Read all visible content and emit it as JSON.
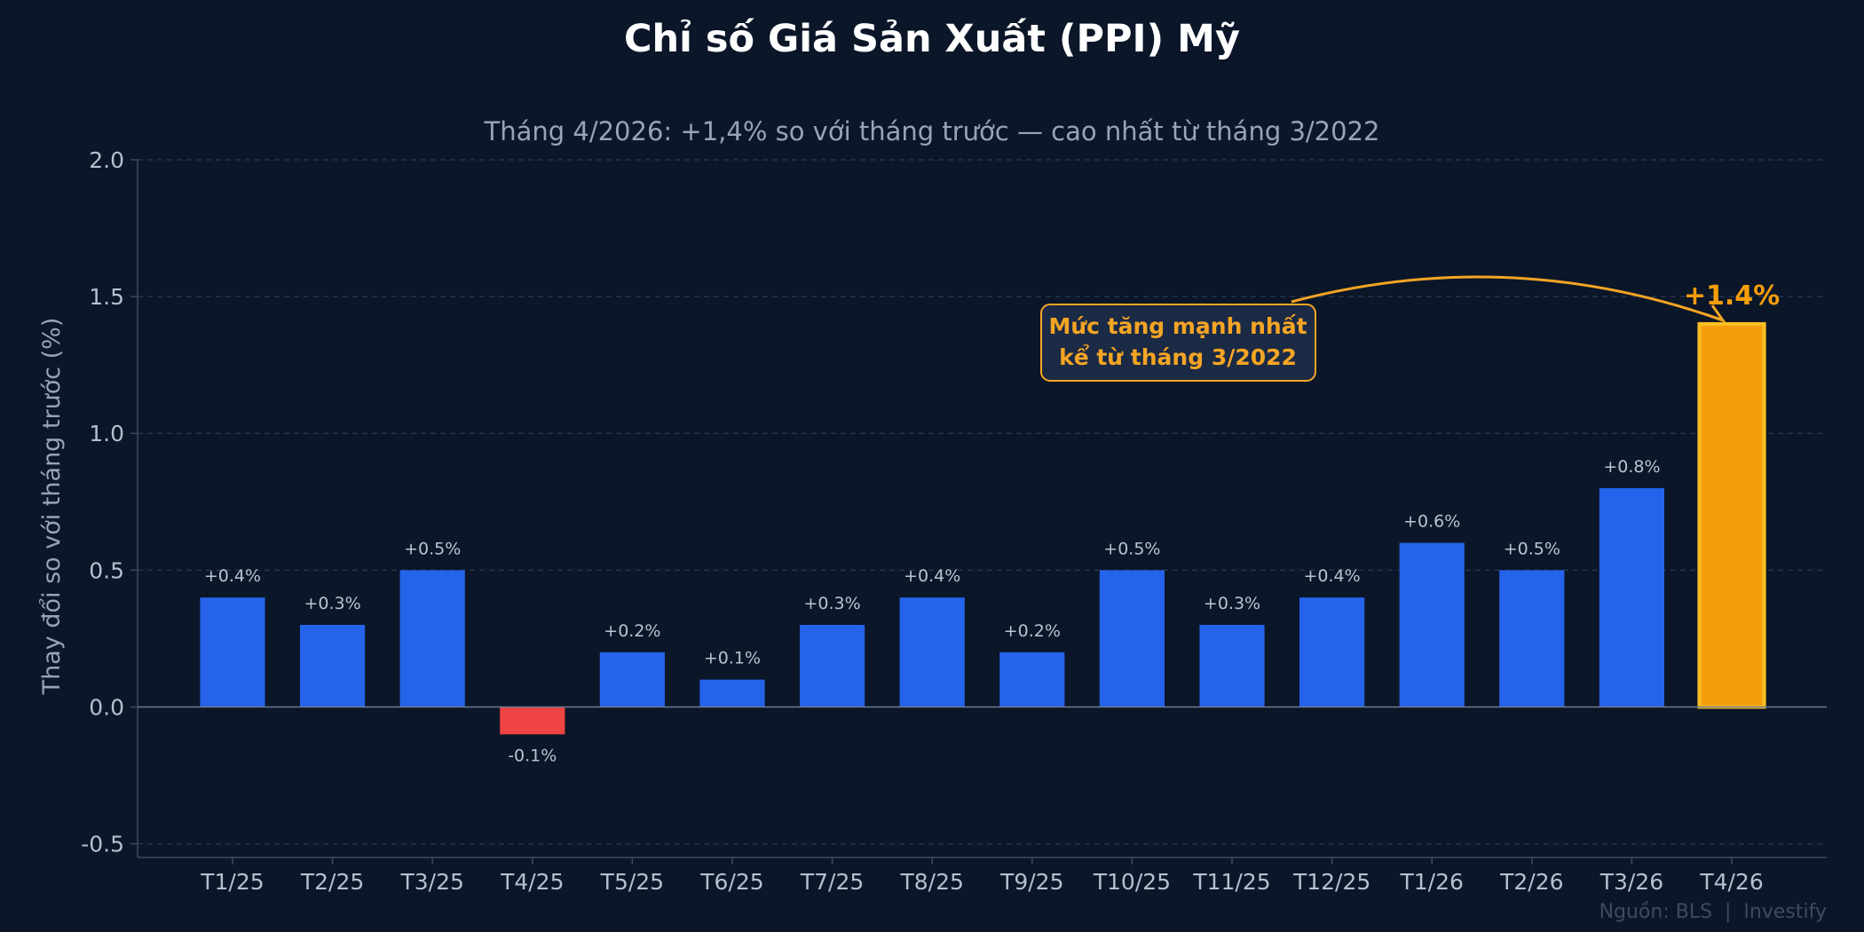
{
  "title": "Chỉ số Giá Sản Xuất (PPI) Mỹ",
  "subtitle": "Tháng 4/2026: +1,4% so với tháng trước — cao nhất từ tháng 3/2022",
  "source": "Nguồn: BLS  |  Investify",
  "annotation": {
    "lines": [
      "Mức tăng mạnh nhất",
      "kể từ tháng 3/2022"
    ],
    "target_category": "T4/26"
  },
  "colors": {
    "positive": "#2563eb",
    "negative": "#ef4444",
    "highlight": "#f59e0b",
    "highlight_edge": "#fbbf24",
    "background": "#0b1628",
    "grid": "#2a3a52"
  },
  "chart_data": {
    "type": "bar",
    "title": "Chỉ số Giá Sản Xuất (PPI) Mỹ",
    "subtitle": "Tháng 4/2026: +1,4% so với tháng trước — cao nhất từ tháng 3/2022",
    "xlabel": "",
    "ylabel": "Thay đổi so với tháng trước (%)",
    "categories": [
      "T1/25",
      "T2/25",
      "T3/25",
      "T4/25",
      "T5/25",
      "T6/25",
      "T7/25",
      "T8/25",
      "T9/25",
      "T10/25",
      "T11/25",
      "T12/25",
      "T1/26",
      "T2/26",
      "T3/26",
      "T4/26"
    ],
    "values": [
      0.4,
      0.3,
      0.5,
      -0.1,
      0.2,
      0.1,
      0.3,
      0.4,
      0.2,
      0.5,
      0.3,
      0.4,
      0.6,
      0.5,
      0.8,
      1.4
    ],
    "labels": [
      "+0.4%",
      "+0.3%",
      "+0.5%",
      "-0.1%",
      "+0.2%",
      "+0.1%",
      "+0.3%",
      "+0.4%",
      "+0.2%",
      "+0.5%",
      "+0.3%",
      "+0.4%",
      "+0.6%",
      "+0.5%",
      "+0.8%",
      "+1.4%"
    ],
    "highlight_index": 15,
    "ylim": [
      -0.55,
      2.0
    ],
    "yticks": [
      -0.5,
      0.0,
      0.5,
      1.0,
      1.5,
      2.0
    ],
    "ytick_labels": [
      "-0.5",
      "0.0",
      "0.5",
      "1.0",
      "1.5",
      "2.0"
    ],
    "grid": true,
    "grid_axis": "y"
  }
}
